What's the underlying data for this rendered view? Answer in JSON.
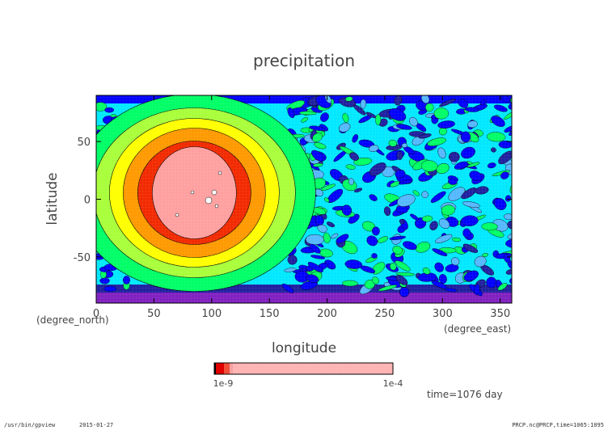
{
  "chart_data": {
    "type": "heatmap",
    "title": "precipitation",
    "xlabel": "longitude",
    "ylabel": "latitude",
    "x_unit": "(degree_east)",
    "y_unit": "(degree_north)",
    "xlim": [
      0,
      360
    ],
    "ylim": [
      -90,
      90
    ],
    "x_ticks": [
      "0",
      "50",
      "100",
      "150",
      "200",
      "250",
      "300",
      "350"
    ],
    "x_tick_values": [
      0,
      50,
      100,
      150,
      200,
      250,
      300,
      350
    ],
    "y_ticks": [
      "50",
      "0",
      "-50"
    ],
    "y_tick_values": [
      50,
      0,
      -50
    ],
    "contour_levels": [
      "0",
      "1e-9",
      "1e-8",
      "1e-7",
      "1e-6",
      "1e-5",
      "1e-4"
    ],
    "colorbar_colors": [
      "#000000",
      "#e10000",
      "#f06a4a",
      "#f8aaaa",
      "#ffb3b3"
    ],
    "colorbar_left_label": "1e-9",
    "colorbar_right_label": "1e-4",
    "feature": {
      "name": "heavy precipitation region",
      "center_lon": 85,
      "center_lat": 0,
      "bands": [
        {
          "level": "inner",
          "color": "#ff9f9f"
        },
        {
          "level": "red",
          "color": "#f22a00"
        },
        {
          "level": "orange",
          "color": "#ff9900"
        },
        {
          "level": "yellow",
          "color": "#ffff00"
        },
        {
          "level": "light-green",
          "color": "#a8ff3a"
        },
        {
          "level": "green",
          "color": "#00ff66"
        }
      ]
    },
    "background_colors": {
      "cyan": "#00e8ff",
      "blue": "#0000ff",
      "dark_blue": "#2020a0",
      "purple": "#8020c0",
      "green": "#00ff66",
      "light_blue": "#55b8ff"
    }
  },
  "footer": {
    "time": "time=1076 day",
    "program": "/usr/bin/gpview",
    "date": "2015-01-27",
    "source": "PRCP.nc@PRCP,time=1065:1095"
  }
}
